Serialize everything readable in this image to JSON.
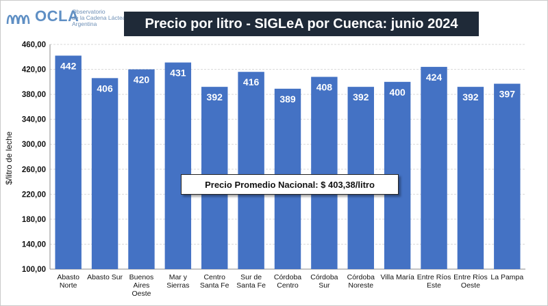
{
  "logo": {
    "name": "OCLA",
    "line1": "Observatorio",
    "line2": "de la Cadena Láctea",
    "line3": "Argentina"
  },
  "title": "Precio por litro - SIGLeA por Cuenca: junio 2024",
  "average_label": "Precio Promedio Nacional: $ 403,38/litro",
  "colors": {
    "bar": "#4472c4",
    "title_bg": "#1f2a38",
    "grid": "#d9d9d9",
    "logo": "#5f8fc4"
  },
  "chart_data": {
    "type": "bar",
    "title": "Precio por litro - SIGLeA por Cuenca: junio 2024",
    "xlabel": "",
    "ylabel": "$/litro de leche",
    "ylim": [
      100,
      460
    ],
    "yticks": [
      "100,00",
      "140,00",
      "180,00",
      "220,00",
      "260,00",
      "300,00",
      "340,00",
      "380,00",
      "420,00",
      "460,00"
    ],
    "grid": true,
    "categories": [
      [
        "Abasto",
        "Norte"
      ],
      [
        "Abasto Sur"
      ],
      [
        "Buenos",
        "Aires",
        "Oeste"
      ],
      [
        "Mar y",
        "Sierras"
      ],
      [
        "Centro",
        "Santa Fe"
      ],
      [
        "Sur de",
        "Santa Fe"
      ],
      [
        "Córdoba",
        "Centro"
      ],
      [
        "Córdoba",
        "Sur"
      ],
      [
        "Córdoba",
        "Noreste"
      ],
      [
        "Villa María"
      ],
      [
        "Entre Ríos",
        "Este"
      ],
      [
        "Entre Ríos",
        "Oeste"
      ],
      [
        "La Pampa"
      ]
    ],
    "values": [
      442,
      406,
      420,
      431,
      392,
      416,
      389,
      408,
      392,
      400,
      424,
      392,
      397
    ],
    "value_labels": [
      "442",
      "406",
      "420",
      "431",
      "392",
      "416",
      "389",
      "408",
      "392",
      "400",
      "424",
      "392",
      "397"
    ]
  }
}
